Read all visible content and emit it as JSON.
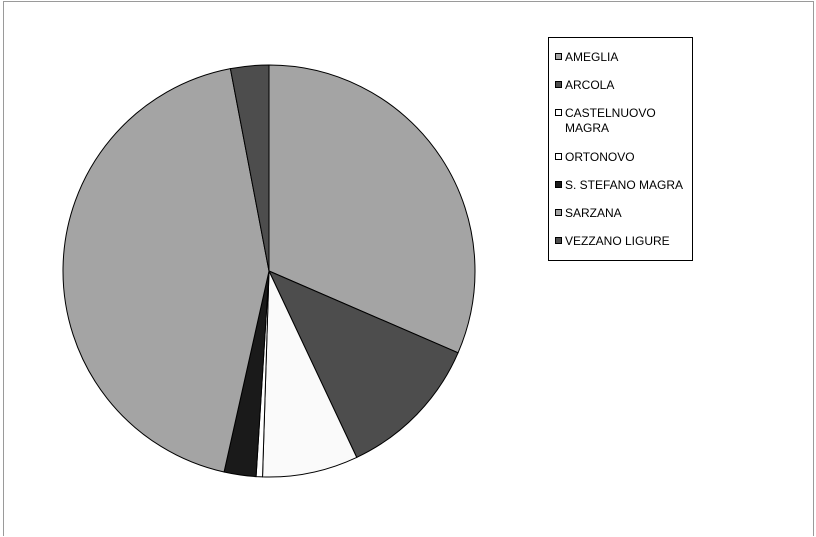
{
  "chart_data": {
    "type": "pie",
    "title": "",
    "slices": [
      {
        "label": "AMEGLIA",
        "value": 31.5,
        "color": "#a4a4a4"
      },
      {
        "label": "ARCOLA",
        "value": 11.5,
        "color": "#4d4d4d"
      },
      {
        "label": "CASTELNUOVO MAGRA",
        "value": 7.5,
        "color": "#fafafa"
      },
      {
        "label": "ORTONOVO",
        "value": 0.5,
        "color": "#ffffff"
      },
      {
        "label": "S. STEFANO MAGRA",
        "value": 2.5,
        "color": "#1a1a1a"
      },
      {
        "label": "SARZANA",
        "value": 43.5,
        "color": "#a4a4a4"
      },
      {
        "label": "VEZZANO LIGURE",
        "value": 3.0,
        "color": "#4d4d4d"
      }
    ],
    "legend": {
      "position": "right",
      "items": [
        "AMEGLIA",
        "ARCOLA",
        "CASTELNUOVO\nMAGRA",
        "ORTONOVO",
        "S. STEFANO MAGRA",
        "SARZANA",
        "VEZZANO LIGURE"
      ]
    }
  }
}
